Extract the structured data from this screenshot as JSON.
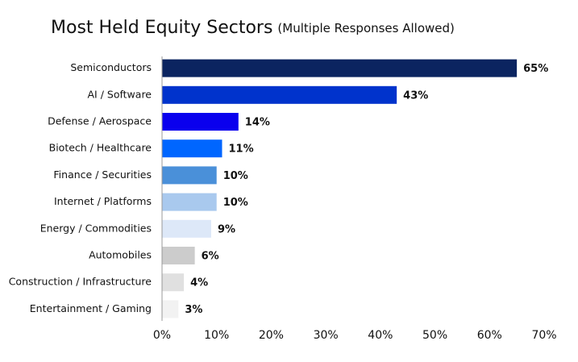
{
  "chart_data": {
    "type": "bar",
    "orientation": "horizontal",
    "title": "Most Held Equity Sectors",
    "subtitle": "(Multiple Responses Allowed)",
    "categories": [
      "Semiconductors",
      "AI / Software",
      "Defense / Aerospace",
      "Biotech / Healthcare",
      "Finance / Securities",
      "Internet / Platforms",
      "Energy / Commodities",
      "Automobiles",
      "Construction / Infrastructure",
      "Entertainment / Gaming"
    ],
    "values": [
      65,
      43,
      14,
      11,
      10,
      10,
      9,
      6,
      4,
      3
    ],
    "value_labels": [
      "65%",
      "43%",
      "14%",
      "11%",
      "10%",
      "10%",
      "9%",
      "6%",
      "4%",
      "3%"
    ],
    "colors": [
      "#0b2460",
      "#0033cc",
      "#0a00ee",
      "#0066ff",
      "#4a90d9",
      "#a9c9ee",
      "#dde8f8",
      "#cccccc",
      "#e0e0e0",
      "#f2f2f2"
    ],
    "xlim": [
      0,
      70
    ],
    "xticks": [
      {
        "value": 0,
        "label": "0%"
      },
      {
        "value": 10,
        "label": "10%"
      },
      {
        "value": 20,
        "label": "20%"
      },
      {
        "value": 30,
        "label": "30%"
      },
      {
        "value": 40,
        "label": "40%"
      },
      {
        "value": 50,
        "label": "50%"
      },
      {
        "value": 60,
        "label": "60%"
      },
      {
        "value": 70,
        "label": "70%"
      }
    ],
    "grid": false
  }
}
